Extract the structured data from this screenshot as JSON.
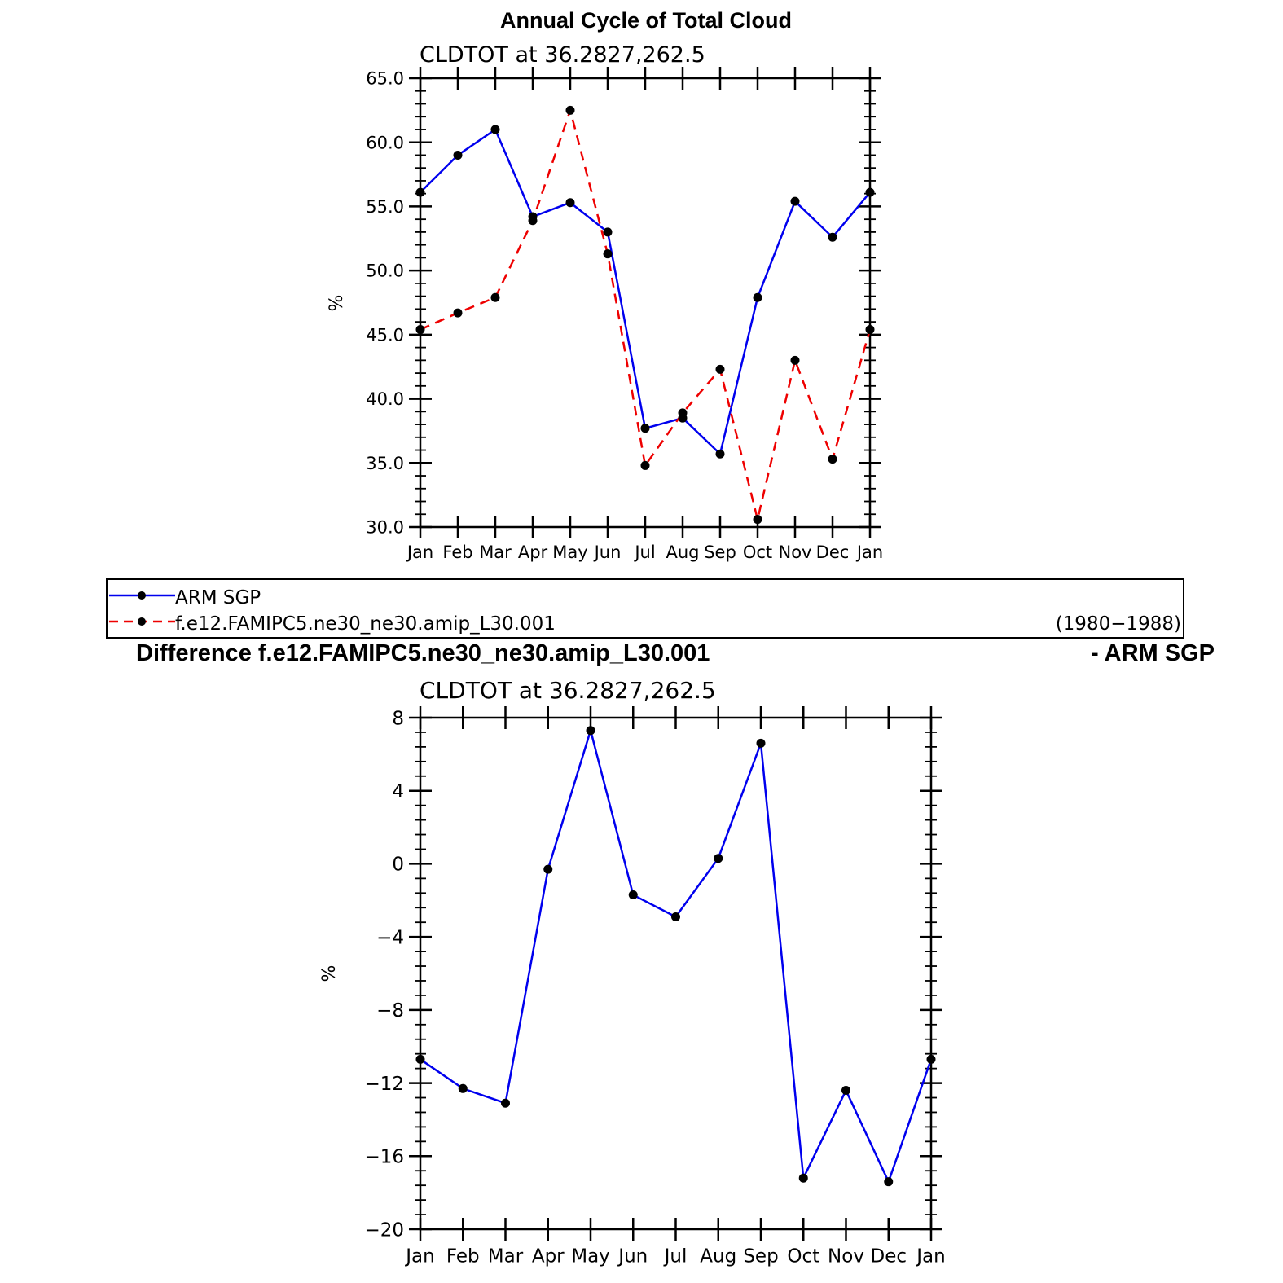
{
  "colors": {
    "obs": "#0000ee",
    "model": "#ee0000",
    "marker": "#000000",
    "diff": "#0000ee"
  },
  "chart_data": [
    {
      "type": "line",
      "title": "Annual Cycle of Total Cloud",
      "subtitle": "CLDTOT at 36.2827,262.5",
      "ylabel": "%",
      "ylim": [
        30,
        65
      ],
      "yticks": [
        "30.0",
        "35.0",
        "40.0",
        "45.0",
        "50.0",
        "55.0",
        "60.0",
        "65.0"
      ],
      "categories": [
        "Jan",
        "Feb",
        "Mar",
        "Apr",
        "May",
        "Jun",
        "Jul",
        "Aug",
        "Sep",
        "Oct",
        "Nov",
        "Dec",
        "Jan"
      ],
      "grid": false,
      "series": [
        {
          "name": "ARM SGP",
          "style": "solid",
          "color": "#0000ee",
          "values": [
            56.1,
            59.0,
            61.0,
            54.2,
            55.3,
            53.0,
            37.7,
            38.5,
            35.7,
            47.9,
            55.4,
            52.6,
            56.1
          ]
        },
        {
          "name": "f.e12.FAMIPC5.ne30_ne30.amip_L30.001",
          "style": "dashed",
          "color": "#ee0000",
          "values": [
            45.4,
            46.7,
            47.9,
            53.9,
            62.5,
            51.3,
            34.8,
            38.9,
            42.3,
            30.6,
            43.0,
            35.3,
            45.4
          ]
        }
      ],
      "legend": {
        "entries": [
          "ARM SGP",
          "f.e12.FAMIPC5.ne30_ne30.amip_L30.001"
        ],
        "period": "(1980−1988)",
        "placement": "bottom"
      }
    },
    {
      "type": "line",
      "title": "Difference f.e12.FAMIPC5.ne30_ne30.amip_L30.001",
      "title_right": "- ARM SGP",
      "subtitle": "CLDTOT at 36.2827,262.5",
      "ylabel": "%",
      "ylim": [
        -20,
        8
      ],
      "yticks": [
        "−20",
        "−16",
        "−12",
        "−8",
        "−4",
        "0",
        "4",
        "8"
      ],
      "categories": [
        "Jan",
        "Feb",
        "Mar",
        "Apr",
        "May",
        "Jun",
        "Jul",
        "Aug",
        "Sep",
        "Oct",
        "Nov",
        "Dec",
        "Jan"
      ],
      "grid": false,
      "series": [
        {
          "values": [
            -10.7,
            -12.3,
            -13.1,
            -0.3,
            7.3,
            -1.7,
            -2.9,
            0.3,
            6.6,
            -17.2,
            -12.4,
            -17.4,
            -10.7
          ]
        }
      ]
    }
  ]
}
